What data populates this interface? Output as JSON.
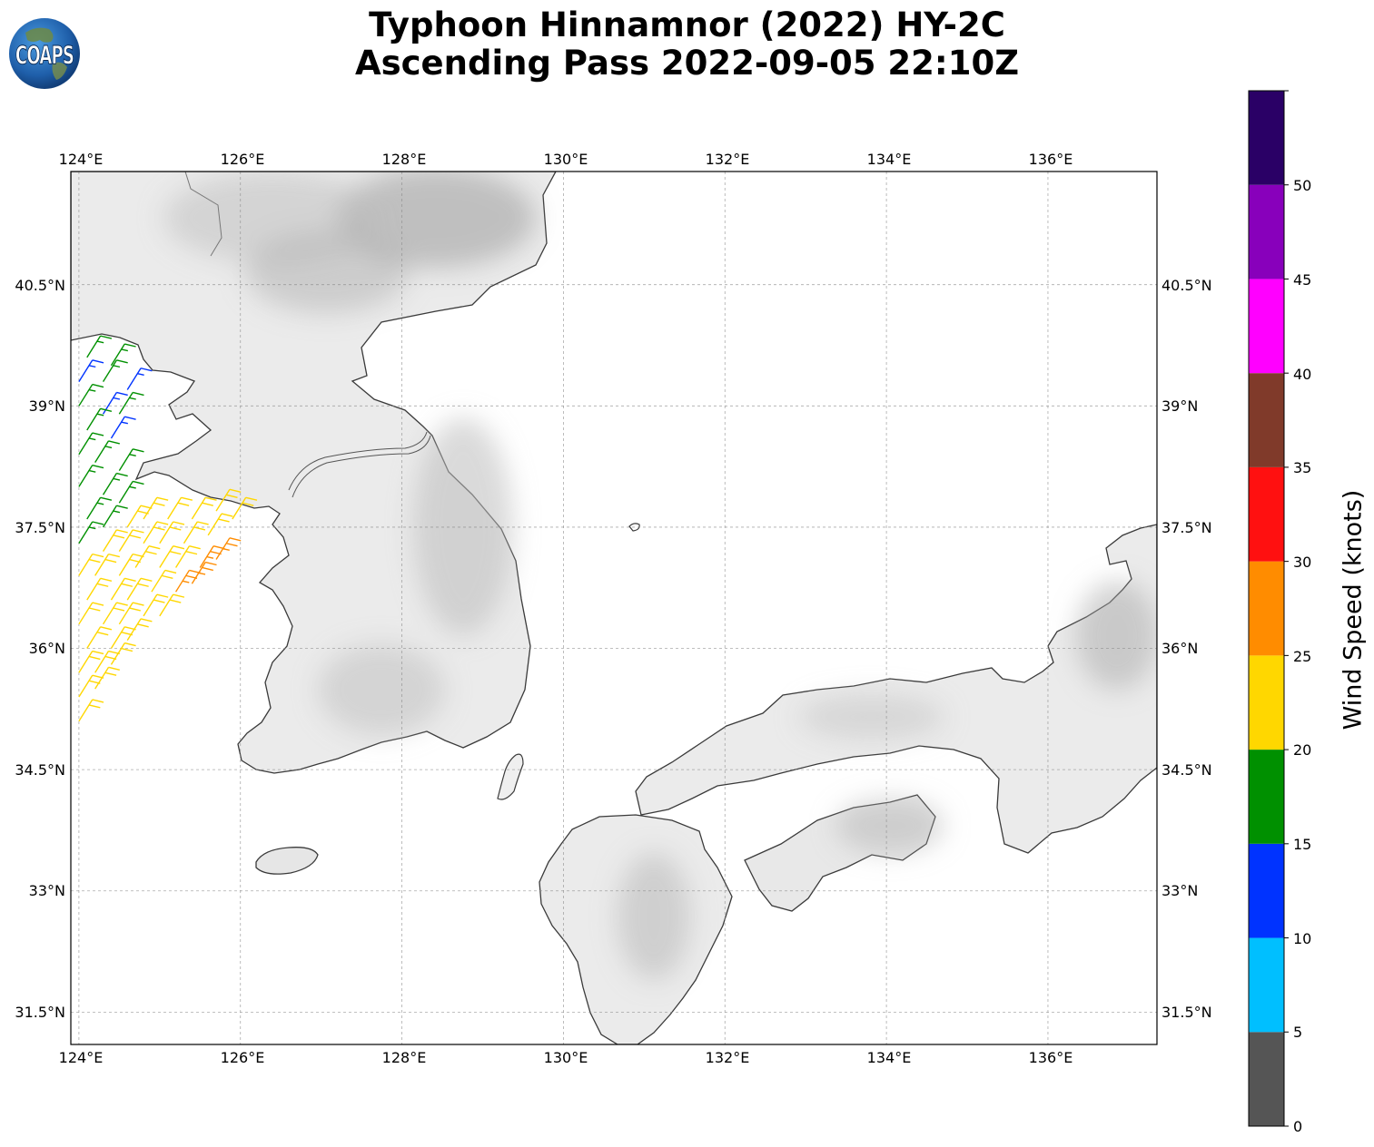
{
  "title": {
    "line1": "Typhoon Hinnamnor (2022) HY-2C",
    "line2": "Ascending Pass 2022-09-05 22:10Z"
  },
  "logo": {
    "text": "COAPS"
  },
  "map": {
    "lon_range": [
      123.9,
      137.35
    ],
    "lat_range": [
      31.1,
      41.9
    ],
    "lon_ticks": [
      "124°E",
      "126°E",
      "128°E",
      "130°E",
      "132°E",
      "134°E",
      "136°E"
    ],
    "lat_ticks": [
      "40.5°N",
      "39°N",
      "37.5°N",
      "36°N",
      "34.5°N",
      "33°N",
      "31.5°N"
    ],
    "gridlines": true,
    "background": "grayscale terrain",
    "regions": [
      "Korean Peninsula",
      "Japan (Honshu, Shikoku, Kyushu)",
      "Jeju Island"
    ]
  },
  "colorbar": {
    "label": "Wind Speed (knots)",
    "ticks": [
      "0",
      "5",
      "10",
      "15",
      "20",
      "25",
      "30",
      "35",
      "40",
      "45",
      "50"
    ],
    "bins": [
      {
        "from": 0,
        "to": 5,
        "color": "#555555"
      },
      {
        "from": 5,
        "to": 10,
        "color": "#00bfff"
      },
      {
        "from": 10,
        "to": 15,
        "color": "#0033ff"
      },
      {
        "from": 15,
        "to": 20,
        "color": "#009000"
      },
      {
        "from": 20,
        "to": 25,
        "color": "#ffd700"
      },
      {
        "from": 25,
        "to": 30,
        "color": "#ff8c00"
      },
      {
        "from": 30,
        "to": 35,
        "color": "#ff1010"
      },
      {
        "from": 35,
        "to": 40,
        "color": "#803a2a"
      },
      {
        "from": 40,
        "to": 45,
        "color": "#ff00ff"
      },
      {
        "from": 45,
        "to": 50,
        "color": "#8800bb"
      },
      {
        "from": 50,
        "to": 55,
        "color": "#2a0066"
      }
    ]
  },
  "wind_barbs": {
    "units": "knots",
    "points": [
      {
        "lon": 124.0,
        "lat": 39.3,
        "speed": 13
      },
      {
        "lon": 124.3,
        "lat": 39.3,
        "speed": 17
      },
      {
        "lon": 124.6,
        "lat": 39.2,
        "speed": 13
      },
      {
        "lon": 124.1,
        "lat": 39.6,
        "speed": 17
      },
      {
        "lon": 124.4,
        "lat": 39.5,
        "speed": 17
      },
      {
        "lon": 124.0,
        "lat": 39.0,
        "speed": 17
      },
      {
        "lon": 124.3,
        "lat": 38.9,
        "speed": 13
      },
      {
        "lon": 124.5,
        "lat": 38.9,
        "speed": 17
      },
      {
        "lon": 124.1,
        "lat": 38.7,
        "speed": 17
      },
      {
        "lon": 124.4,
        "lat": 38.6,
        "speed": 13
      },
      {
        "lon": 124.0,
        "lat": 38.4,
        "speed": 17
      },
      {
        "lon": 124.2,
        "lat": 38.3,
        "speed": 17
      },
      {
        "lon": 124.5,
        "lat": 38.2,
        "speed": 17
      },
      {
        "lon": 124.0,
        "lat": 38.0,
        "speed": 17
      },
      {
        "lon": 124.3,
        "lat": 37.9,
        "speed": 17
      },
      {
        "lon": 124.5,
        "lat": 37.8,
        "speed": 17
      },
      {
        "lon": 124.1,
        "lat": 37.6,
        "speed": 17
      },
      {
        "lon": 124.3,
        "lat": 37.5,
        "speed": 17
      },
      {
        "lon": 124.0,
        "lat": 37.3,
        "speed": 17
      },
      {
        "lon": 124.6,
        "lat": 37.5,
        "speed": 22
      },
      {
        "lon": 124.8,
        "lat": 37.6,
        "speed": 22
      },
      {
        "lon": 125.1,
        "lat": 37.6,
        "speed": 22
      },
      {
        "lon": 125.4,
        "lat": 37.6,
        "speed": 22
      },
      {
        "lon": 125.7,
        "lat": 37.7,
        "speed": 22
      },
      {
        "lon": 125.9,
        "lat": 37.6,
        "speed": 22
      },
      {
        "lon": 124.3,
        "lat": 37.2,
        "speed": 22
      },
      {
        "lon": 124.5,
        "lat": 37.2,
        "speed": 22
      },
      {
        "lon": 124.8,
        "lat": 37.3,
        "speed": 22
      },
      {
        "lon": 125.0,
        "lat": 37.3,
        "speed": 22
      },
      {
        "lon": 125.3,
        "lat": 37.3,
        "speed": 22
      },
      {
        "lon": 125.6,
        "lat": 37.4,
        "speed": 22
      },
      {
        "lon": 124.0,
        "lat": 36.9,
        "speed": 22
      },
      {
        "lon": 124.2,
        "lat": 36.9,
        "speed": 22
      },
      {
        "lon": 124.5,
        "lat": 36.9,
        "speed": 22
      },
      {
        "lon": 124.7,
        "lat": 37.0,
        "speed": 22
      },
      {
        "lon": 125.0,
        "lat": 37.0,
        "speed": 22
      },
      {
        "lon": 125.2,
        "lat": 37.0,
        "speed": 22
      },
      {
        "lon": 125.5,
        "lat": 37.0,
        "speed": 27
      },
      {
        "lon": 125.7,
        "lat": 37.1,
        "speed": 27
      },
      {
        "lon": 124.1,
        "lat": 36.6,
        "speed": 22
      },
      {
        "lon": 124.4,
        "lat": 36.6,
        "speed": 22
      },
      {
        "lon": 124.6,
        "lat": 36.6,
        "speed": 22
      },
      {
        "lon": 124.9,
        "lat": 36.7,
        "speed": 22
      },
      {
        "lon": 125.2,
        "lat": 36.7,
        "speed": 27
      },
      {
        "lon": 125.4,
        "lat": 36.8,
        "speed": 27
      },
      {
        "lon": 124.0,
        "lat": 36.3,
        "speed": 22
      },
      {
        "lon": 124.3,
        "lat": 36.3,
        "speed": 22
      },
      {
        "lon": 124.5,
        "lat": 36.3,
        "speed": 22
      },
      {
        "lon": 124.8,
        "lat": 36.4,
        "speed": 22
      },
      {
        "lon": 125.0,
        "lat": 36.4,
        "speed": 22
      },
      {
        "lon": 124.1,
        "lat": 36.0,
        "speed": 22
      },
      {
        "lon": 124.4,
        "lat": 36.0,
        "speed": 22
      },
      {
        "lon": 124.6,
        "lat": 36.1,
        "speed": 22
      },
      {
        "lon": 124.0,
        "lat": 35.7,
        "speed": 22
      },
      {
        "lon": 124.2,
        "lat": 35.7,
        "speed": 22
      },
      {
        "lon": 124.4,
        "lat": 35.8,
        "speed": 22
      },
      {
        "lon": 124.0,
        "lat": 35.4,
        "speed": 22
      },
      {
        "lon": 124.2,
        "lat": 35.5,
        "speed": 22
      },
      {
        "lon": 124.0,
        "lat": 35.1,
        "speed": 22
      }
    ]
  }
}
